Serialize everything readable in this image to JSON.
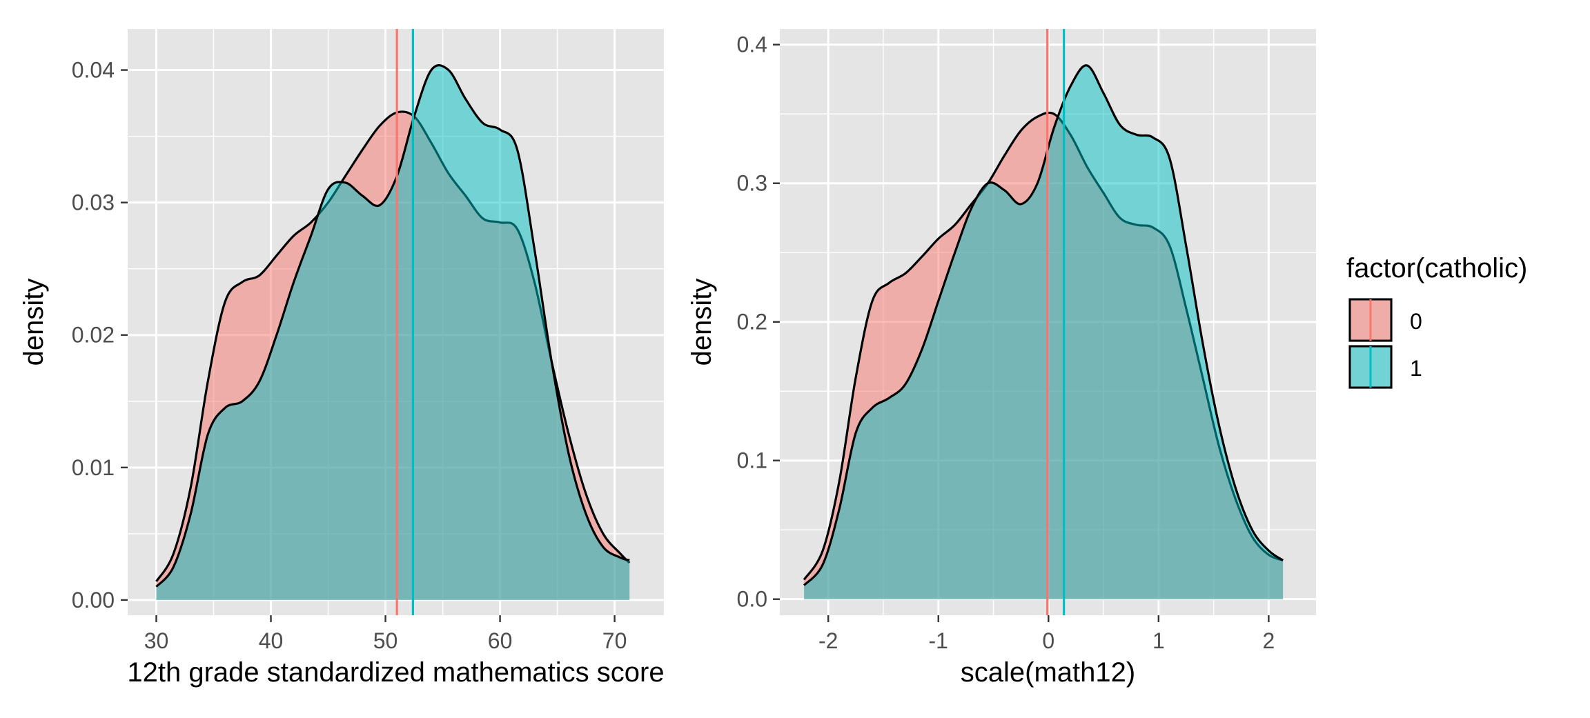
{
  "chart_data": [
    {
      "type": "area",
      "xlabel": "12th grade standardized mathematics score",
      "ylabel": "density",
      "xlim": [
        27.5,
        74.3
      ],
      "ylim": [
        -0.00115,
        0.0431
      ],
      "x_ticks": [
        30,
        40,
        50,
        60,
        70
      ],
      "x_tick_labels": [
        "30",
        "40",
        "50",
        "60",
        "70"
      ],
      "y_ticks": [
        0.0,
        0.01,
        0.02,
        0.03,
        0.04
      ],
      "y_tick_labels": [
        "0.00",
        "0.01",
        "0.02",
        "0.03",
        "0.04"
      ],
      "grid": true,
      "series": [
        {
          "name": "0",
          "x": [
            30.0,
            31.5,
            33.0,
            34.5,
            36.0,
            37.5,
            39.0,
            40.5,
            42.0,
            43.5,
            45.0,
            46.5,
            48.0,
            49.5,
            51.0,
            52.5,
            54.0,
            55.5,
            57.0,
            58.5,
            60.0,
            61.5,
            63.0,
            64.5,
            66.0,
            67.5,
            69.0,
            70.5,
            71.3
          ],
          "y": [
            0.0014,
            0.0035,
            0.0085,
            0.0165,
            0.0225,
            0.024,
            0.0245,
            0.026,
            0.0275,
            0.0285,
            0.03,
            0.032,
            0.034,
            0.0358,
            0.0368,
            0.0365,
            0.0345,
            0.0322,
            0.0305,
            0.0288,
            0.0285,
            0.028,
            0.024,
            0.018,
            0.0125,
            0.008,
            0.005,
            0.0035,
            0.0028
          ]
        },
        {
          "name": "1",
          "x": [
            30.0,
            31.5,
            33.0,
            34.5,
            36.0,
            37.5,
            39.0,
            40.5,
            42.0,
            43.5,
            45.0,
            46.5,
            48.0,
            49.5,
            51.0,
            52.5,
            54.0,
            55.5,
            57.0,
            58.5,
            60.0,
            61.5,
            63.0,
            64.5,
            66.0,
            67.5,
            69.0,
            70.5,
            71.3
          ],
          "y": [
            0.001,
            0.0025,
            0.0065,
            0.0125,
            0.0145,
            0.015,
            0.0165,
            0.02,
            0.024,
            0.0275,
            0.031,
            0.0315,
            0.0305,
            0.0298,
            0.032,
            0.0365,
            0.04,
            0.04,
            0.0378,
            0.036,
            0.0355,
            0.034,
            0.0265,
            0.018,
            0.011,
            0.0065,
            0.004,
            0.0032,
            0.003
          ]
        }
      ],
      "vlines": [
        {
          "group": "0",
          "x": 51.0
        },
        {
          "group": "1",
          "x": 52.4
        }
      ]
    },
    {
      "type": "area",
      "xlabel": "scale(math12)",
      "ylabel": "density",
      "xlim": [
        -2.44,
        2.43
      ],
      "ylim": [
        -0.0116,
        0.4113
      ],
      "x_ticks": [
        -2,
        -1,
        0,
        1,
        2
      ],
      "x_tick_labels": [
        "-2",
        "-1",
        "0",
        "1",
        "2"
      ],
      "y_ticks": [
        0.0,
        0.1,
        0.2,
        0.3,
        0.4
      ],
      "y_tick_labels": [
        "0.0",
        "0.1",
        "0.2",
        "0.3",
        "0.4"
      ],
      "grid": true,
      "series": [
        {
          "name": "0",
          "x": [
            -2.22,
            -2.05,
            -1.9,
            -1.75,
            -1.6,
            -1.45,
            -1.3,
            -1.15,
            -1.0,
            -0.85,
            -0.7,
            -0.55,
            -0.4,
            -0.25,
            -0.1,
            0.05,
            0.2,
            0.35,
            0.5,
            0.65,
            0.8,
            0.95,
            1.1,
            1.25,
            1.4,
            1.55,
            1.7,
            1.85,
            2.0,
            2.13
          ],
          "y": [
            0.014,
            0.035,
            0.085,
            0.16,
            0.215,
            0.228,
            0.235,
            0.247,
            0.26,
            0.27,
            0.285,
            0.3,
            0.32,
            0.338,
            0.348,
            0.35,
            0.335,
            0.312,
            0.293,
            0.275,
            0.27,
            0.268,
            0.255,
            0.21,
            0.16,
            0.11,
            0.072,
            0.045,
            0.032,
            0.028
          ]
        },
        {
          "name": "1",
          "x": [
            -2.22,
            -2.05,
            -1.9,
            -1.75,
            -1.6,
            -1.45,
            -1.3,
            -1.15,
            -1.0,
            -0.85,
            -0.7,
            -0.55,
            -0.4,
            -0.25,
            -0.1,
            0.05,
            0.2,
            0.35,
            0.5,
            0.65,
            0.8,
            0.95,
            1.1,
            1.25,
            1.4,
            1.55,
            1.7,
            1.85,
            2.0,
            2.13
          ],
          "y": [
            0.01,
            0.025,
            0.065,
            0.12,
            0.138,
            0.145,
            0.155,
            0.18,
            0.215,
            0.25,
            0.282,
            0.3,
            0.295,
            0.285,
            0.3,
            0.34,
            0.37,
            0.385,
            0.365,
            0.342,
            0.335,
            0.333,
            0.318,
            0.255,
            0.185,
            0.125,
            0.08,
            0.05,
            0.035,
            0.028
          ]
        }
      ],
      "vlines": [
        {
          "group": "0",
          "x": -0.01
        },
        {
          "group": "1",
          "x": 0.14
        }
      ]
    }
  ],
  "legend": {
    "title": "factor(catholic)",
    "items": [
      {
        "label": "0",
        "color": "#F8766D"
      },
      {
        "label": "1",
        "color": "#00BFC4"
      }
    ]
  },
  "colors": {
    "panel_background": "#E5E5E5",
    "grid": "#FFFFFF",
    "group_0": "#F8766D",
    "group_1": "#00BFC4",
    "outline": "#000000",
    "tick_text": "#4D4D4D"
  }
}
